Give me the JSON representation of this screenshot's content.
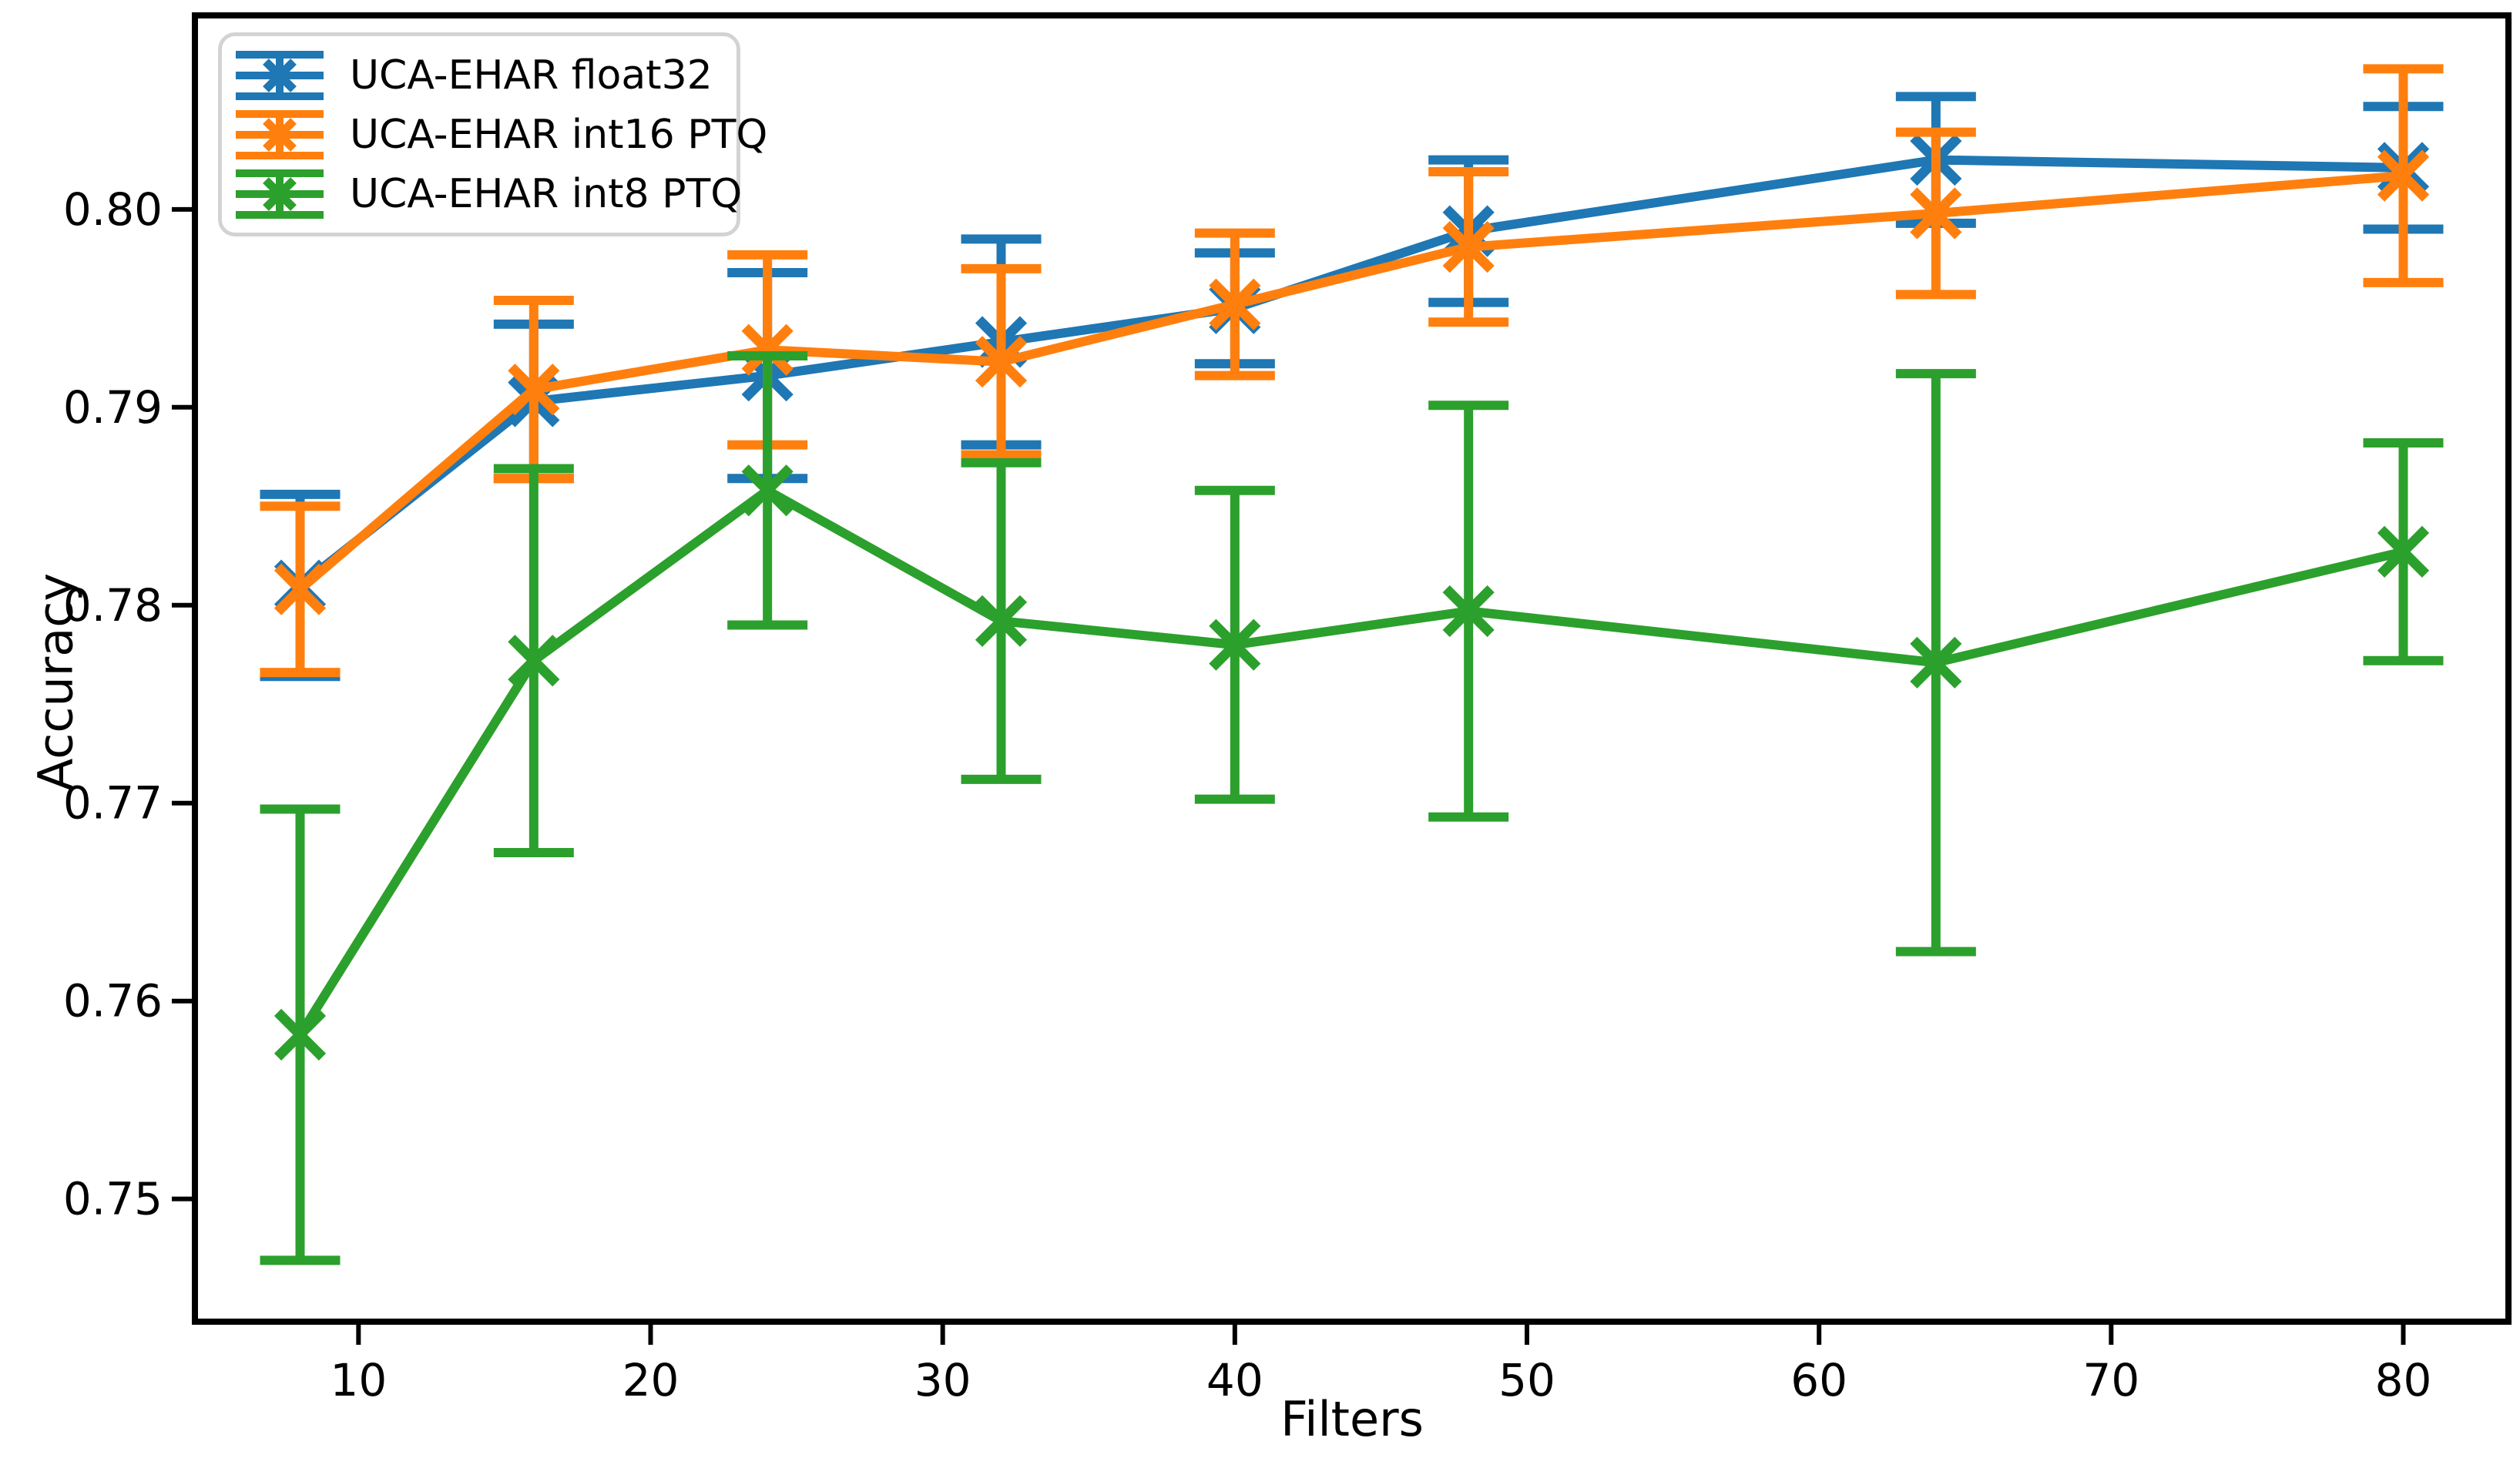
{
  "figure": {
    "background": "#ffffff",
    "text_color": "#000000",
    "spine_color": "#000000",
    "legend_border_color": "#d3d3d3"
  },
  "chart_data": {
    "type": "line",
    "title": "",
    "xlabel": "Filters",
    "ylabel": "Accuracy",
    "grid": false,
    "marker": "x",
    "error_bars": true,
    "legend_position": "upper-left",
    "x": [
      8,
      16,
      24,
      32,
      40,
      48,
      64,
      80
    ],
    "xlim": [
      4.4,
      83.6
    ],
    "ylim": [
      0.7438,
      0.8098
    ],
    "xtick_values": [
      10,
      20,
      30,
      40,
      50,
      60,
      70,
      80
    ],
    "xticklabels": [
      "10",
      "20",
      "30",
      "40",
      "50",
      "60",
      "70",
      "80"
    ],
    "ytick_values": [
      0.75,
      0.76,
      0.77,
      0.78,
      0.79,
      0.8
    ],
    "yticklabels": [
      "0.75",
      "0.76",
      "0.77",
      "0.78",
      "0.79",
      "0.80"
    ],
    "series": [
      {
        "name": "UCA-EHAR float32",
        "color": "#1f77b4",
        "values": [
          0.781,
          0.7903,
          0.7916,
          0.7933,
          0.795,
          0.7989,
          0.8025,
          0.8021
        ],
        "errors": [
          0.0046,
          0.0039,
          0.0052,
          0.0052,
          0.0028,
          0.0036,
          0.0032,
          0.0031
        ]
      },
      {
        "name": "UCA-EHAR int16 PTQ",
        "color": "#ff7f0e",
        "values": [
          0.7808,
          0.7909,
          0.7929,
          0.7923,
          0.7952,
          0.7981,
          0.7998,
          0.8017
        ],
        "errors": [
          0.0042,
          0.0045,
          0.0048,
          0.0047,
          0.0036,
          0.0038,
          0.0041,
          0.0054
        ]
      },
      {
        "name": "UCA-EHAR int8 PTQ",
        "color": "#2ca02c",
        "values": [
          0.7583,
          0.7772,
          0.7858,
          0.7792,
          0.778,
          0.7797,
          0.7771,
          0.7827
        ],
        "errors": [
          0.0114,
          0.0097,
          0.0068,
          0.008,
          0.0078,
          0.0104,
          0.0146,
          0.0055
        ]
      }
    ]
  }
}
